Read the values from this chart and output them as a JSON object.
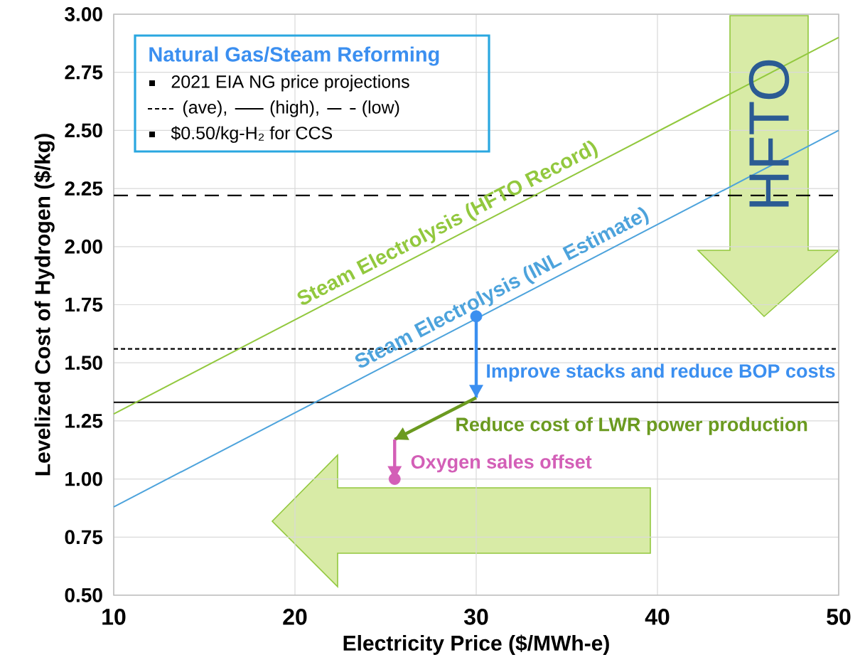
{
  "chart_data": {
    "type": "line",
    "xlabel": "Electricity Price ($/MWh-e)",
    "ylabel": "Levelized Cost of Hydrogen ($/kg)",
    "xlim": [
      10,
      50
    ],
    "xticks": [
      10,
      20,
      30,
      40,
      50
    ],
    "ylim": [
      0.5,
      3.0
    ],
    "yticks": [
      {
        "value": 0.5,
        "label": "0.50"
      },
      {
        "value": 0.75,
        "label": "0.75"
      },
      {
        "value": 1.0,
        "label": "1.00"
      },
      {
        "value": 1.25,
        "label": "1.25"
      },
      {
        "value": 1.5,
        "label": "1.50"
      },
      {
        "value": 1.75,
        "label": "1.75"
      },
      {
        "value": 2.0,
        "label": "2.00"
      },
      {
        "value": 2.25,
        "label": "2.25"
      },
      {
        "value": 2.5,
        "label": "2.50"
      },
      {
        "value": 2.75,
        "label": "2.75"
      },
      {
        "value": 3.0,
        "label": "3.00"
      }
    ],
    "grid": true,
    "series": [
      {
        "name": "Steam Electrolysis (HFTO Record)",
        "color": "#92c83e",
        "x": [
          10,
          50
        ],
        "values": [
          1.28,
          2.9
        ]
      },
      {
        "name": "Steam Electrolysis (INL Estimate)",
        "color": "#4da3dc",
        "x": [
          10,
          50
        ],
        "values": [
          0.88,
          2.5
        ]
      },
      {
        "color": "#3b8ff0",
        "x": [
          30,
          30
        ],
        "values": [
          1.7,
          1.35
        ]
      },
      {
        "color": "#6b9a20",
        "x": [
          30,
          25.5
        ],
        "values": [
          1.35,
          1.17
        ]
      },
      {
        "color": "#d35fb7",
        "x": [
          25.5,
          25.5
        ],
        "values": [
          1.17,
          1.0
        ]
      },
      {
        "type": "scatter",
        "color": "#3b8ff0",
        "x": [
          30
        ],
        "values": [
          1.7
        ]
      },
      {
        "type": "scatter",
        "color": "#d35fb7",
        "x": [
          25.5
        ],
        "values": [
          1.0
        ]
      }
    ],
    "ref_lines": [
      {
        "axis": "y",
        "value": 2.22,
        "color": "#000000",
        "line_style": "dashed"
      },
      {
        "axis": "y",
        "value": 1.56,
        "color": "#000000",
        "line_style": "dotted"
      },
      {
        "axis": "y",
        "value": 1.33,
        "color": "#000000",
        "line_style": "solid"
      }
    ],
    "annotations": [
      "Natural Gas/Steam Reforming",
      "2021 EIA NG price projections",
      "(ave),",
      "(high),",
      "(low)",
      "$0.50/kg-H₂ for CCS",
      "HFTO",
      "Improve stacks and reduce BOP costs",
      "Reduce cost of LWR power production",
      "Oxygen sales offset"
    ]
  }
}
